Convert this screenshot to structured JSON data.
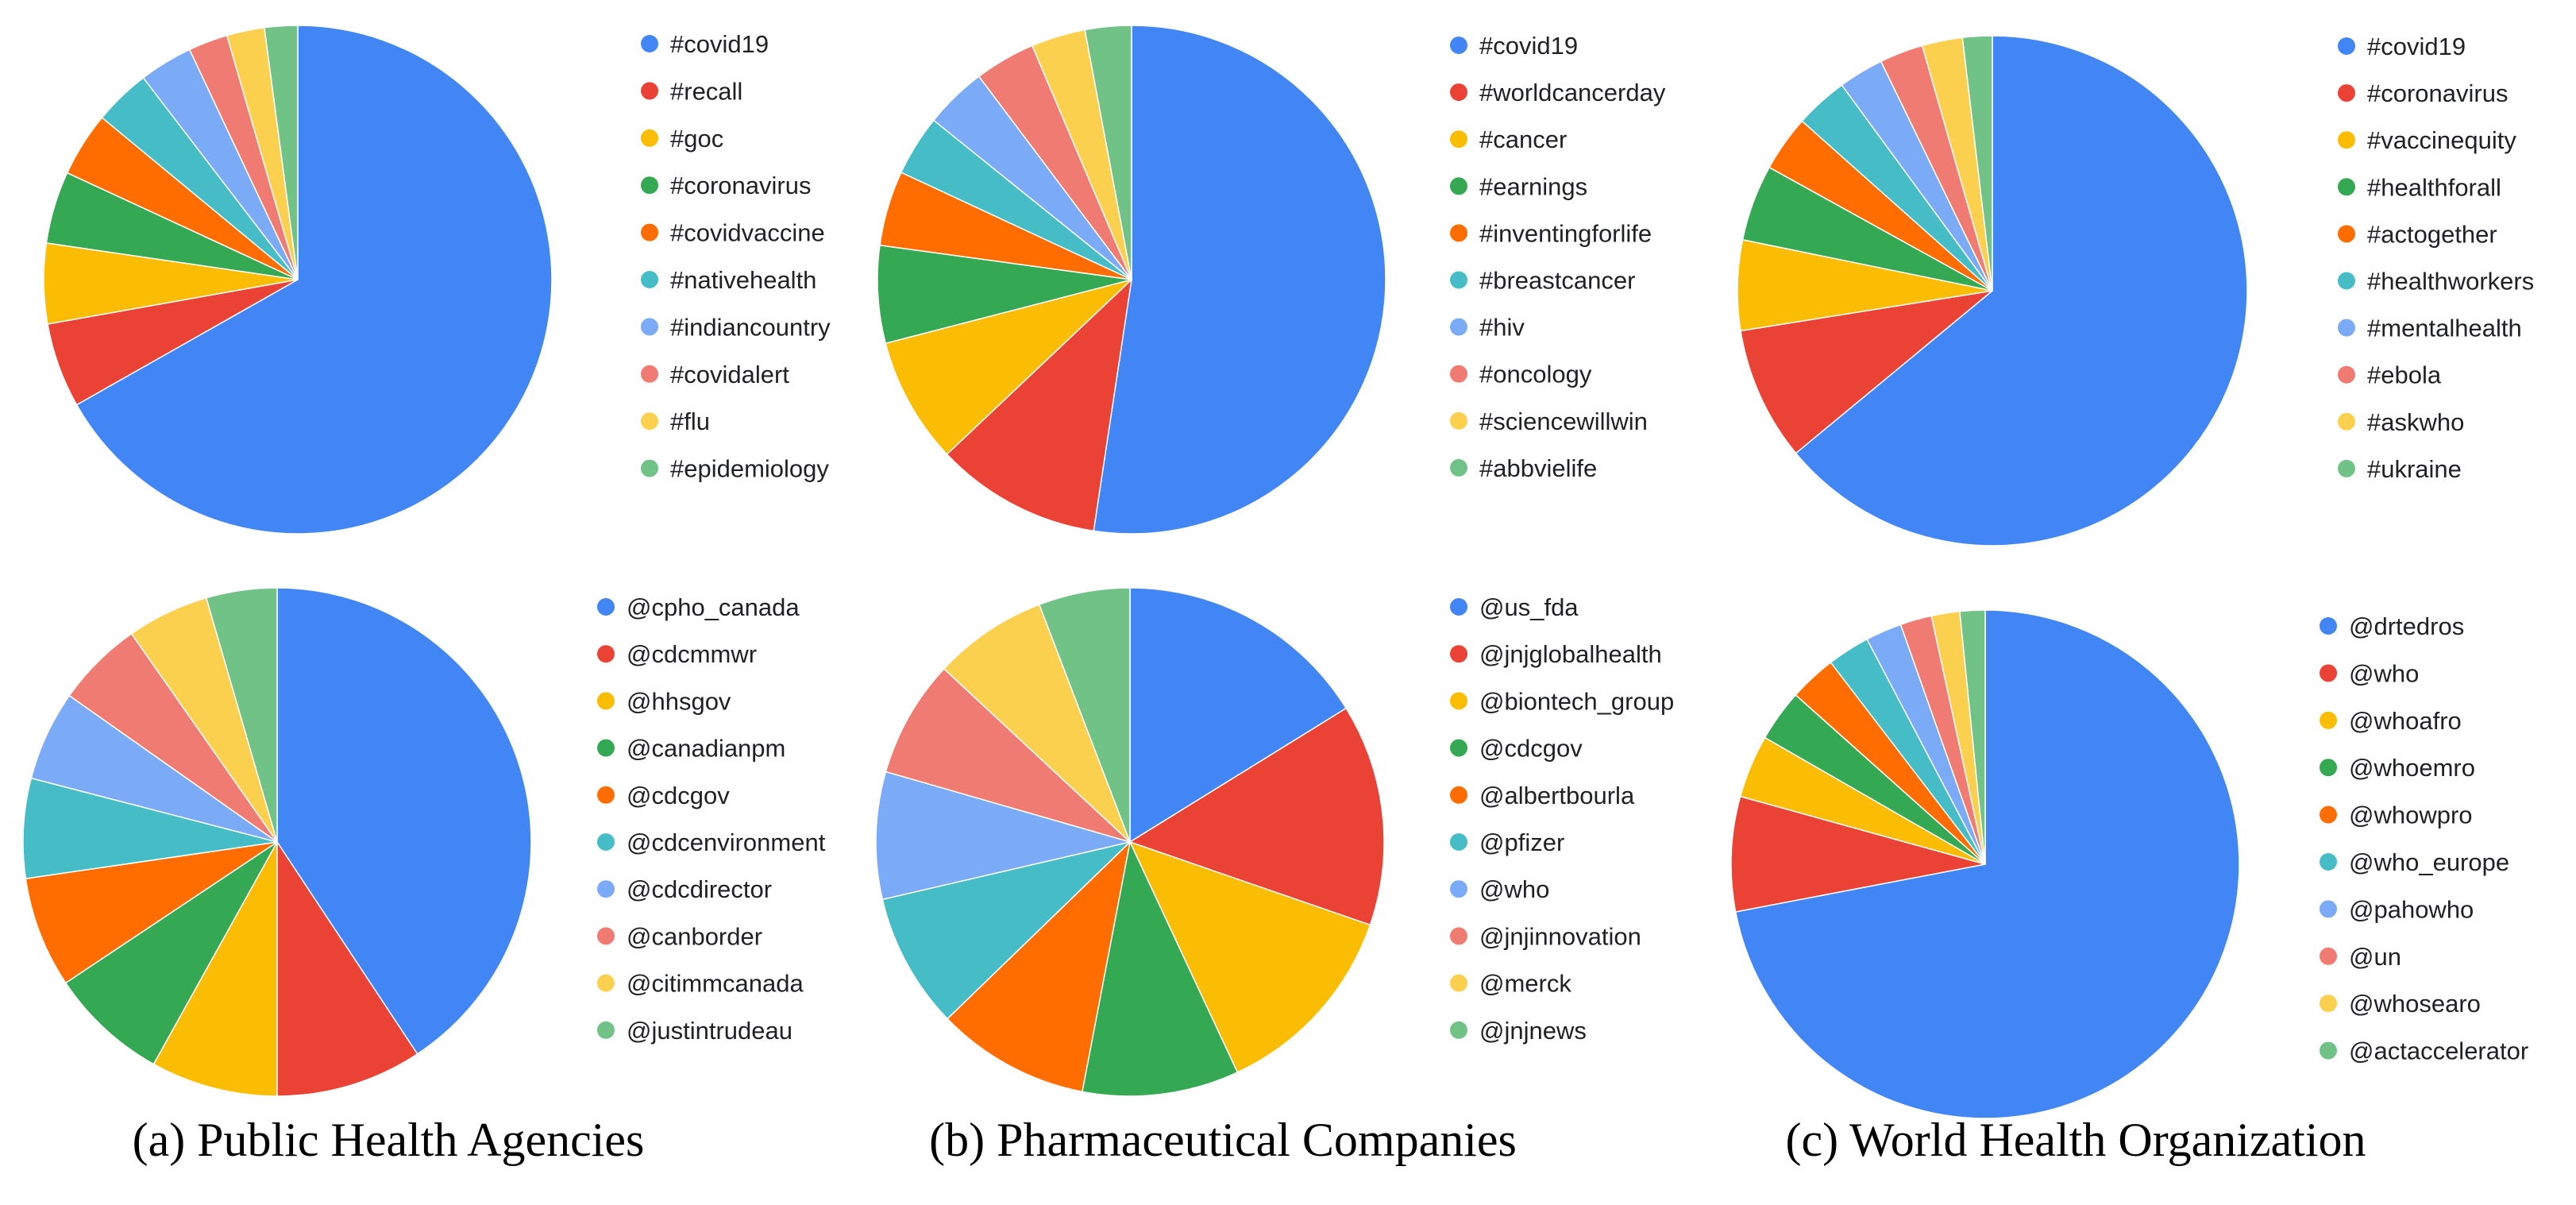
{
  "colors": [
    "#4285F4",
    "#EA4335",
    "#FBBC04",
    "#34A853",
    "#FF6D01",
    "#46BDC6",
    "#7BAAF7",
    "#F07B72",
    "#FCD04F",
    "#71C287"
  ],
  "captions": {
    "a": "(a) Public Health Agencies",
    "b": "(b) Pharmaceutical Companies",
    "c": "(c) World Health Organization"
  },
  "chart_data": [
    {
      "type": "pie",
      "group": "Public Health Agencies",
      "title": "",
      "categories": [
        "#covid19",
        "#recall",
        "#goc",
        "#coronavirus",
        "#covidvaccine",
        "#nativehealth",
        "#indiancountry",
        "#covidalert",
        "#flu",
        "#epidemiology"
      ],
      "values": [
        66.8,
        5.4,
        5.1,
        4.6,
        4.1,
        3.6,
        3.4,
        2.5,
        2.4,
        2.1
      ]
    },
    {
      "type": "pie",
      "group": "Pharmaceutical Companies",
      "title": "",
      "categories": [
        "#covid19",
        "#worldcancerday",
        "#cancer",
        "#earnings",
        "#inventingforlife",
        "#breastcancer",
        "#hiv",
        "#oncology",
        "#sciencewillwin",
        "#abbvielife"
      ],
      "values": [
        51.6,
        10.4,
        7.9,
        6.1,
        4.7,
        3.8,
        3.9,
        3.8,
        3.4,
        2.9
      ]
    },
    {
      "type": "pie",
      "group": "World Health Organization",
      "title": "",
      "categories": [
        "#covid19",
        "#coronavirus",
        "#vaccinequity",
        "#healthforall",
        "#actogether",
        "#healthworkers",
        "#mentalhealth",
        "#ebola",
        "#askwho",
        "#ukraine"
      ],
      "values": [
        64.9,
        8.6,
        5.8,
        4.9,
        3.6,
        3.4,
        2.9,
        2.8,
        2.6,
        1.9
      ]
    },
    {
      "type": "pie",
      "group": "Public Health Agencies",
      "title": "",
      "categories": [
        "@cpho_canada",
        "@cdcmmwr",
        "@hhsgov",
        "@canadianpm",
        "@cdcgov",
        "@cdcenvironment",
        "@cdcdirector",
        "@canborder",
        "@citimmcanada",
        "@justintrudeau"
      ],
      "values": [
        39.8,
        9.1,
        7.9,
        7.4,
        6.9,
        6.2,
        5.6,
        5.4,
        5.1,
        4.4
      ]
    },
    {
      "type": "pie",
      "group": "Pharmaceutical Companies",
      "title": "",
      "categories": [
        "@us_fda",
        "@jnjglobalhealth",
        "@biontech_group",
        "@cdcgov",
        "@albertbourla",
        "@pfizer",
        "@who",
        "@jnjinnovation",
        "@merck",
        "@jnjnews"
      ],
      "values": [
        15.6,
        13.6,
        12.3,
        9.6,
        9.4,
        8.3,
        7.8,
        7.2,
        7.0,
        5.6
      ]
    },
    {
      "type": "pie",
      "group": "World Health Organization",
      "title": "",
      "categories": [
        "@drtedros",
        "@who",
        "@whoafro",
        "@whoemro",
        "@whowpro",
        "@who_europe",
        "@pahowho",
        "@un",
        "@whosearo",
        "@actaccelerator"
      ],
      "values": [
        72.0,
        7.3,
        4.0,
        3.3,
        3.0,
        2.7,
        2.3,
        2.0,
        1.8,
        1.6
      ]
    }
  ]
}
